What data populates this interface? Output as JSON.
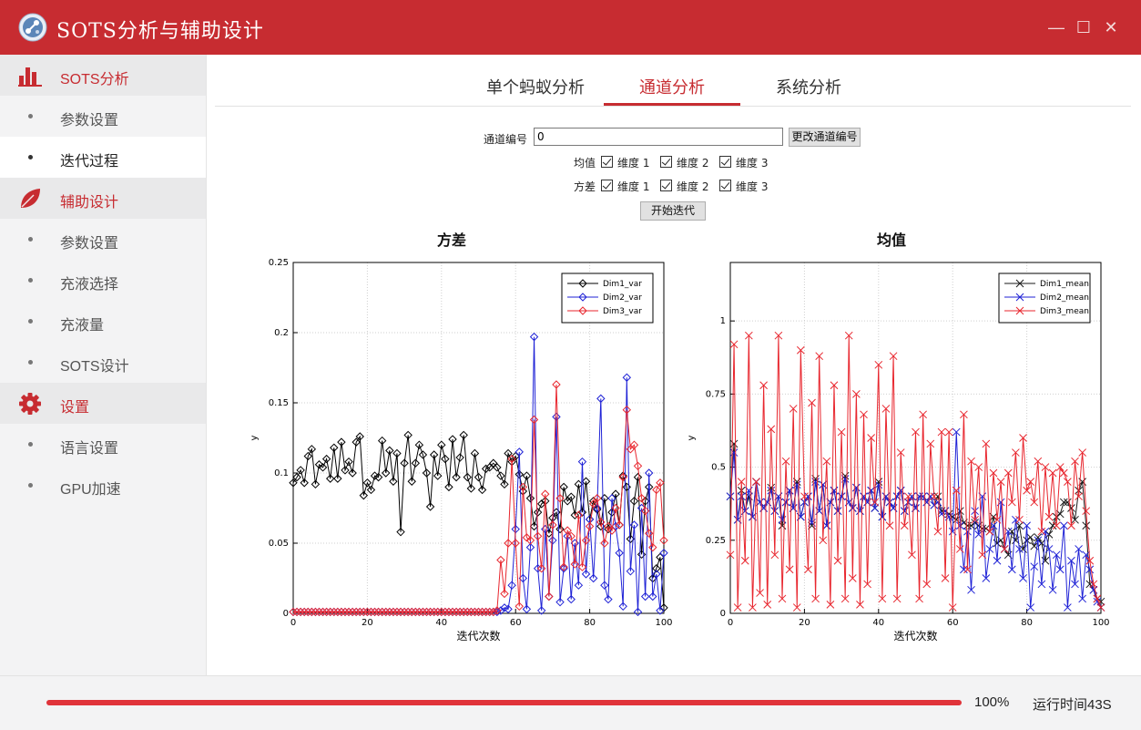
{
  "app": {
    "title": "SOTS分析与辅助设计",
    "accent": "#c72c31"
  },
  "window_controls": {
    "minimize": "—",
    "maximize": "☐",
    "close": "✕"
  },
  "sidebar": {
    "groups": [
      {
        "label": "SOTS分析",
        "icon": "bar-chart-icon",
        "items": [
          "参数设置",
          "迭代过程"
        ]
      },
      {
        "label": "辅助设计",
        "icon": "leaf-icon",
        "items": [
          "参数设置",
          "充液选择",
          "充液量",
          "SOTS设计"
        ]
      },
      {
        "label": "设置",
        "icon": "gear-icon",
        "items": [
          "语言设置",
          "GPU加速"
        ]
      }
    ],
    "active_item": "迭代过程"
  },
  "tabs": [
    {
      "label": "单个蚂蚁分析",
      "active": false
    },
    {
      "label": "通道分析",
      "active": true
    },
    {
      "label": "系统分析",
      "active": false
    }
  ],
  "form": {
    "channel_label": "通道编号",
    "channel_value": "0",
    "change_button": "更改通道编号",
    "mean_label": "均值",
    "var_label": "方差",
    "dims": [
      "维度 1",
      "维度 2",
      "维度 3"
    ],
    "mean_checked": [
      true,
      true,
      true
    ],
    "var_checked": [
      true,
      true,
      true
    ],
    "start_button": "开始迭代"
  },
  "chart_data": [
    {
      "type": "line",
      "title": "方差",
      "xlabel": "迭代次数",
      "ylabel": "y",
      "xlim": [
        0,
        100
      ],
      "ylim": [
        0,
        0.25
      ],
      "xticks": [
        "0",
        "20",
        "40",
        "60",
        "80",
        "100"
      ],
      "yticks": [
        "0",
        "0.05",
        "0.1",
        "0.15",
        "0.2",
        "0.25"
      ],
      "grid": true,
      "legend_position": "top-right",
      "x": [
        0,
        1,
        2,
        3,
        4,
        5,
        6,
        7,
        8,
        9,
        10,
        11,
        12,
        13,
        14,
        15,
        16,
        17,
        18,
        19,
        20,
        21,
        22,
        23,
        24,
        25,
        26,
        27,
        28,
        29,
        30,
        31,
        32,
        33,
        34,
        35,
        36,
        37,
        38,
        39,
        40,
        41,
        42,
        43,
        44,
        45,
        46,
        47,
        48,
        49,
        50,
        51,
        52,
        53,
        54,
        55,
        56,
        57,
        58,
        59,
        60,
        61,
        62,
        63,
        64,
        65,
        66,
        67,
        68,
        69,
        70,
        71,
        72,
        73,
        74,
        75,
        76,
        77,
        78,
        79,
        80,
        81,
        82,
        83,
        84,
        85,
        86,
        87,
        88,
        89,
        90,
        91,
        92,
        93,
        94,
        95,
        96,
        97,
        98,
        99,
        100
      ],
      "series": [
        {
          "name": "Dim1_var",
          "color": "#000000",
          "marker": "diamond",
          "values": [
            0.093,
            0.097,
            0.102,
            0.093,
            0.112,
            0.117,
            0.092,
            0.106,
            0.104,
            0.11,
            0.096,
            0.118,
            0.096,
            0.122,
            0.102,
            0.108,
            0.1,
            0.122,
            0.126,
            0.084,
            0.093,
            0.088,
            0.098,
            0.097,
            0.123,
            0.1,
            0.116,
            0.094,
            0.114,
            0.058,
            0.107,
            0.127,
            0.094,
            0.107,
            0.12,
            0.113,
            0.1,
            0.076,
            0.113,
            0.098,
            0.12,
            0.11,
            0.09,
            0.124,
            0.097,
            0.111,
            0.127,
            0.097,
            0.089,
            0.114,
            0.097,
            0.088,
            0.103,
            0.104,
            0.107,
            0.104,
            0.098,
            0.092,
            0.114,
            0.108,
            0.112,
            0.099,
            0.087,
            0.098,
            0.082,
            0.062,
            0.072,
            0.078,
            0.08,
            0.057,
            0.068,
            0.072,
            0.06,
            0.09,
            0.08,
            0.083,
            0.07,
            0.092,
            0.072,
            0.094,
            0.067,
            0.08,
            0.074,
            0.062,
            0.082,
            0.06,
            0.072,
            0.085,
            0.063,
            0.098,
            0.09,
            0.053,
            0.08,
            0.097,
            0.042,
            0.08,
            0.09,
            0.025,
            0.032,
            0.04,
            0.004
          ]
        },
        {
          "name": "Dim2_var",
          "color": "#1f22d6",
          "marker": "diamond",
          "values": [
            0.001,
            0.001,
            0.001,
            0.001,
            0.001,
            0.001,
            0.001,
            0.001,
            0.001,
            0.001,
            0.001,
            0.001,
            0.001,
            0.001,
            0.001,
            0.001,
            0.001,
            0.001,
            0.001,
            0.001,
            0.001,
            0.001,
            0.001,
            0.001,
            0.001,
            0.001,
            0.001,
            0.001,
            0.001,
            0.001,
            0.001,
            0.001,
            0.001,
            0.001,
            0.001,
            0.001,
            0.001,
            0.001,
            0.001,
            0.001,
            0.001,
            0.001,
            0.001,
            0.001,
            0.001,
            0.001,
            0.001,
            0.001,
            0.001,
            0.001,
            0.001,
            0.001,
            0.001,
            0.001,
            0.001,
            0.001,
            0.002,
            0.004,
            0.003,
            0.02,
            0.06,
            0.115,
            0.025,
            0.003,
            0.047,
            0.197,
            0.032,
            0.002,
            0.06,
            0.012,
            0.052,
            0.14,
            0.008,
            0.032,
            0.055,
            0.01,
            0.05,
            0.02,
            0.108,
            0.028,
            0.067,
            0.025,
            0.075,
            0.153,
            0.02,
            0.01,
            0.082,
            0.062,
            0.043,
            0.005,
            0.168,
            0.03,
            0.063,
            0.001,
            0.075,
            0.012,
            0.1,
            0.012,
            0.028,
            0.002,
            0.043
          ]
        },
        {
          "name": "Dim3_var",
          "color": "#e8262e",
          "marker": "diamond",
          "values": [
            0.001,
            0.001,
            0.001,
            0.001,
            0.001,
            0.001,
            0.001,
            0.001,
            0.001,
            0.001,
            0.001,
            0.001,
            0.001,
            0.001,
            0.001,
            0.001,
            0.001,
            0.001,
            0.001,
            0.001,
            0.001,
            0.001,
            0.001,
            0.001,
            0.001,
            0.001,
            0.001,
            0.001,
            0.001,
            0.001,
            0.001,
            0.001,
            0.001,
            0.001,
            0.001,
            0.001,
            0.001,
            0.001,
            0.001,
            0.001,
            0.001,
            0.001,
            0.001,
            0.001,
            0.001,
            0.001,
            0.001,
            0.001,
            0.001,
            0.001,
            0.001,
            0.001,
            0.001,
            0.001,
            0.001,
            0.002,
            0.038,
            0.014,
            0.05,
            0.11,
            0.05,
            0.005,
            0.09,
            0.054,
            0.052,
            0.138,
            0.055,
            0.032,
            0.085,
            0.012,
            0.063,
            0.163,
            0.082,
            0.033,
            0.059,
            0.055,
            0.035,
            0.07,
            0.033,
            0.052,
            0.062,
            0.078,
            0.082,
            0.065,
            0.05,
            0.062,
            0.059,
            0.075,
            0.063,
            0.097,
            0.145,
            0.117,
            0.12,
            0.105,
            0.082,
            0.073,
            0.057,
            0.047,
            0.088,
            0.093,
            0.052
          ]
        }
      ]
    },
    {
      "type": "line",
      "title": "均值",
      "xlabel": "迭代次数",
      "ylabel": "y",
      "xlim": [
        0,
        100
      ],
      "ylim": [
        0,
        1.2
      ],
      "xticks": [
        "0",
        "20",
        "40",
        "60",
        "80",
        "100"
      ],
      "yticks": [
        "0",
        "0.25",
        "0.5",
        "0.75",
        "1"
      ],
      "grid": true,
      "legend_position": "top-right",
      "x": [
        0,
        1,
        2,
        3,
        4,
        5,
        6,
        7,
        8,
        9,
        10,
        11,
        12,
        13,
        14,
        15,
        16,
        17,
        18,
        19,
        20,
        21,
        22,
        23,
        24,
        25,
        26,
        27,
        28,
        29,
        30,
        31,
        32,
        33,
        34,
        35,
        36,
        37,
        38,
        39,
        40,
        41,
        42,
        43,
        44,
        45,
        46,
        47,
        48,
        49,
        50,
        51,
        52,
        53,
        54,
        55,
        56,
        57,
        58,
        59,
        60,
        61,
        62,
        63,
        64,
        65,
        66,
        67,
        68,
        69,
        70,
        71,
        72,
        73,
        74,
        75,
        76,
        77,
        78,
        79,
        80,
        81,
        82,
        83,
        84,
        85,
        86,
        87,
        88,
        89,
        90,
        91,
        92,
        93,
        94,
        95,
        96,
        97,
        98,
        99,
        100
      ],
      "series": [
        {
          "name": "Dim1_mean",
          "color": "#1a1a1a",
          "marker": "x",
          "values": [
            0.4,
            0.58,
            0.32,
            0.42,
            0.35,
            0.4,
            0.33,
            0.45,
            0.38,
            0.36,
            0.38,
            0.43,
            0.35,
            0.4,
            0.3,
            0.38,
            0.42,
            0.36,
            0.45,
            0.33,
            0.38,
            0.4,
            0.3,
            0.46,
            0.35,
            0.44,
            0.3,
            0.38,
            0.42,
            0.35,
            0.4,
            0.47,
            0.38,
            0.36,
            0.43,
            0.35,
            0.4,
            0.38,
            0.42,
            0.36,
            0.45,
            0.33,
            0.4,
            0.38,
            0.36,
            0.4,
            0.42,
            0.35,
            0.38,
            0.4,
            0.36,
            0.4,
            0.4,
            0.38,
            0.4,
            0.37,
            0.4,
            0.35,
            0.35,
            0.34,
            0.33,
            0.32,
            0.35,
            0.31,
            0.3,
            0.3,
            0.31,
            0.3,
            0.29,
            0.29,
            0.28,
            0.33,
            0.24,
            0.25,
            0.22,
            0.2,
            0.28,
            0.25,
            0.3,
            0.22,
            0.25,
            0.26,
            0.23,
            0.26,
            0.24,
            0.18,
            0.27,
            0.3,
            0.33,
            0.34,
            0.38,
            0.38,
            0.36,
            0.32,
            0.42,
            0.45,
            0.3,
            0.1,
            0.08,
            0.05,
            0.04
          ]
        },
        {
          "name": "Dim2_mean",
          "color": "#1f22d6",
          "marker": "x",
          "values": [
            0.4,
            0.55,
            0.32,
            0.4,
            0.35,
            0.42,
            0.33,
            0.45,
            0.38,
            0.36,
            0.38,
            0.42,
            0.35,
            0.4,
            0.32,
            0.38,
            0.42,
            0.36,
            0.44,
            0.33,
            0.38,
            0.4,
            0.31,
            0.45,
            0.35,
            0.44,
            0.3,
            0.38,
            0.42,
            0.35,
            0.4,
            0.46,
            0.38,
            0.36,
            0.43,
            0.35,
            0.4,
            0.38,
            0.42,
            0.36,
            0.44,
            0.33,
            0.4,
            0.38,
            0.36,
            0.4,
            0.42,
            0.35,
            0.38,
            0.4,
            0.36,
            0.4,
            0.4,
            0.38,
            0.4,
            0.37,
            0.38,
            0.34,
            0.35,
            0.33,
            0.28,
            0.62,
            0.3,
            0.15,
            0.28,
            0.08,
            0.35,
            0.27,
            0.4,
            0.12,
            0.22,
            0.3,
            0.18,
            0.38,
            0.22,
            0.28,
            0.15,
            0.32,
            0.22,
            0.12,
            0.3,
            0.02,
            0.16,
            0.25,
            0.1,
            0.28,
            0.22,
            0.08,
            0.2,
            0.15,
            0.3,
            0.02,
            0.18,
            0.1,
            0.22,
            0.05,
            0.2,
            0.15,
            0.08,
            0.04,
            0.02
          ]
        },
        {
          "name": "Dim3_mean",
          "color": "#e8262e",
          "marker": "x",
          "values": [
            0.2,
            0.92,
            0.02,
            0.45,
            0.18,
            0.95,
            0.02,
            0.45,
            0.07,
            0.78,
            0.03,
            0.63,
            0.2,
            0.95,
            0.05,
            0.52,
            0.15,
            0.7,
            0.02,
            0.9,
            0.4,
            0.15,
            0.72,
            0.05,
            0.88,
            0.25,
            0.52,
            0.03,
            0.78,
            0.18,
            0.62,
            0.05,
            0.95,
            0.12,
            0.75,
            0.03,
            0.68,
            0.1,
            0.6,
            0.38,
            0.85,
            0.05,
            0.7,
            0.3,
            0.88,
            0.05,
            0.55,
            0.3,
            0.4,
            0.2,
            0.62,
            0.05,
            0.68,
            0.1,
            0.58,
            0.4,
            0.28,
            0.62,
            0.12,
            0.62,
            0.02,
            0.42,
            0.22,
            0.68,
            0.15,
            0.52,
            0.32,
            0.5,
            0.2,
            0.58,
            0.28,
            0.48,
            0.32,
            0.45,
            0.22,
            0.48,
            0.38,
            0.55,
            0.32,
            0.6,
            0.42,
            0.45,
            0.38,
            0.52,
            0.28,
            0.5,
            0.33,
            0.48,
            0.3,
            0.5,
            0.48,
            0.45,
            0.3,
            0.52,
            0.4,
            0.55,
            0.35,
            0.18,
            0.1,
            0.05,
            0.02
          ]
        }
      ]
    }
  ],
  "footer": {
    "progress_percent": 100,
    "progress_text": "100%",
    "runtime_text": "运行时间43S"
  }
}
